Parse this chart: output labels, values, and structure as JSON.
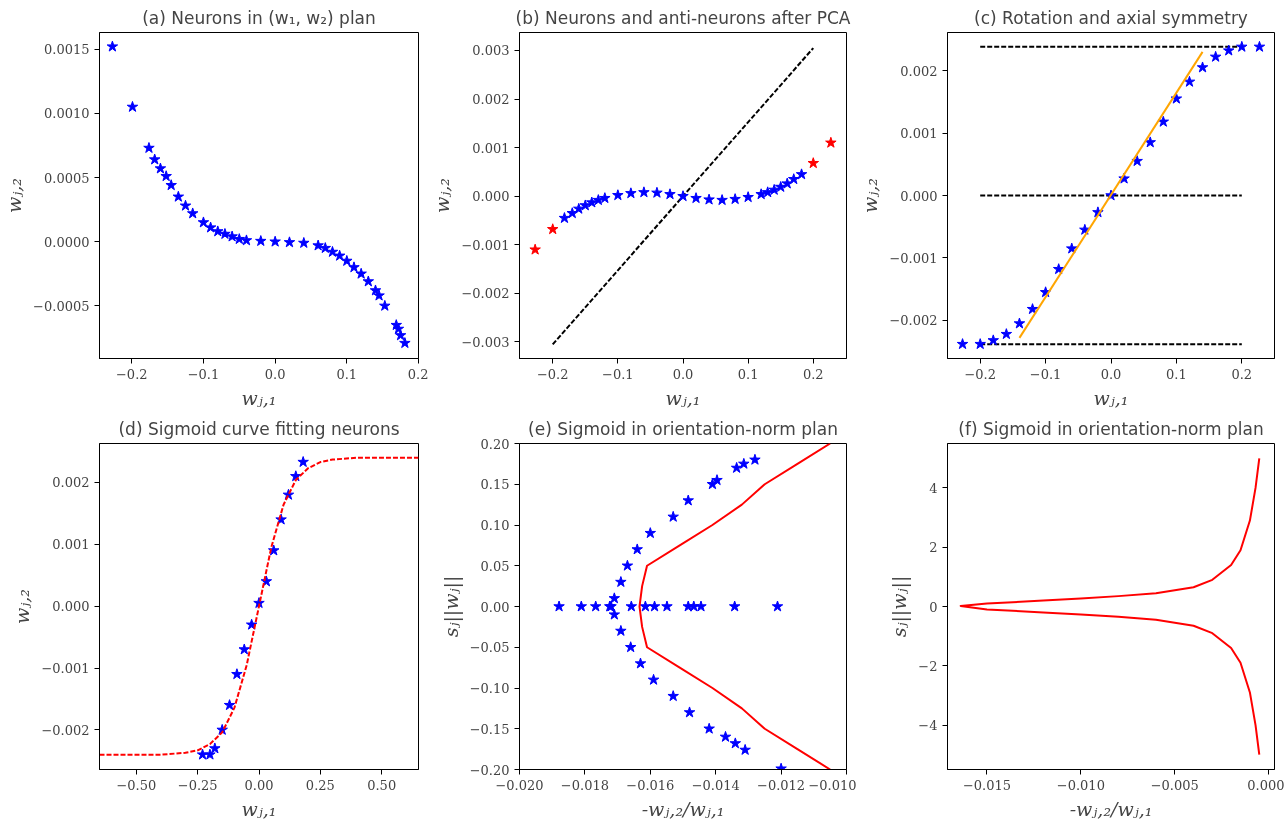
{
  "chart_data": [
    {
      "type": "scatter",
      "title": "(a) Neurons in (w₁, w₂) plan",
      "xlabel": "wⱼ,₁",
      "ylabel": "wⱼ,₂",
      "marker": "star",
      "grid": false,
      "xlim": [
        -0.245,
        0.2
      ],
      "ylim": [
        -0.00091,
        0.00163
      ],
      "xticks": [
        {
          "value": -0.2,
          "label": "−0.2"
        },
        {
          "value": -0.1,
          "label": "−0.1"
        },
        {
          "value": 0,
          "label": "0.0"
        },
        {
          "value": 0.1,
          "label": "0.1"
        },
        {
          "value": 0.2,
          "label": "0.2"
        }
      ],
      "yticks": [
        {
          "value": -0.0005,
          "label": "−0.0005"
        },
        {
          "value": 0,
          "label": "0.0000"
        },
        {
          "value": 0.0005,
          "label": "0.0005"
        },
        {
          "value": 0.001,
          "label": "0.0010"
        },
        {
          "value": 0.0015,
          "label": "0.0015"
        }
      ],
      "series": [
        {
          "color": "#0000ff",
          "x": [
            -0.227,
            -0.199,
            -0.176,
            -0.168,
            -0.16,
            -0.152,
            -0.145,
            -0.135,
            -0.125,
            -0.115,
            -0.1,
            -0.09,
            -0.08,
            -0.07,
            -0.06,
            -0.05,
            -0.04,
            -0.02,
            0,
            0.02,
            0.04,
            0.06,
            0.07,
            0.08,
            0.09,
            0.1,
            0.11,
            0.12,
            0.13,
            0.14,
            0.145,
            0.153,
            0.169,
            0.172,
            0.175,
            0.181
          ],
          "values": [
            0.00152,
            0.00105,
            0.00073,
            0.00064,
            0.00057,
            0.00051,
            0.00044,
            0.00035,
            0.00028,
            0.00022,
            0.00015,
            0.00011,
            8e-05,
            6e-05,
            4e-05,
            2e-05,
            1e-05,
            5e-06,
            0,
            -5e-06,
            -1e-05,
            -3e-05,
            -5e-05,
            -8e-05,
            -0.00011,
            -0.00015,
            -0.0002,
            -0.00025,
            -0.00031,
            -0.00038,
            -0.00042,
            -0.0005,
            -0.00065,
            -0.00068,
            -0.00073,
            -0.00079
          ]
        }
      ]
    },
    {
      "type": "scatter",
      "title": "(b) Neurons and anti-neurons after PCA",
      "xlabel": "wⱼ,₁",
      "ylabel": "wⱼ,₂",
      "marker": "star",
      "grid": false,
      "xlim": [
        -0.251,
        0.251
      ],
      "ylim": [
        -0.00334,
        0.00337
      ],
      "xticks": [
        {
          "value": -0.2,
          "label": "−0.2"
        },
        {
          "value": -0.1,
          "label": "−0.1"
        },
        {
          "value": 0,
          "label": "0.0"
        },
        {
          "value": 0.1,
          "label": "0.1"
        },
        {
          "value": 0.2,
          "label": "0.2"
        }
      ],
      "yticks": [
        {
          "value": -0.003,
          "label": "−0.003"
        },
        {
          "value": -0.002,
          "label": "−0.002"
        },
        {
          "value": -0.001,
          "label": "−0.001"
        },
        {
          "value": 0,
          "label": "0.000"
        },
        {
          "value": 0.001,
          "label": "0.001"
        },
        {
          "value": 0.002,
          "label": "0.002"
        },
        {
          "value": 0.003,
          "label": "0.003"
        }
      ],
      "series": [
        {
          "type": "line",
          "marker": "none",
          "color": "#000000",
          "line_style": "dashed",
          "x": [
            -0.2,
            0.2
          ],
          "values": [
            -0.00305,
            0.00305
          ]
        },
        {
          "color": "#0000ff",
          "x": [
            -0.182,
            -0.17,
            -0.16,
            -0.15,
            -0.14,
            -0.13,
            -0.12,
            -0.1,
            -0.08,
            -0.06,
            -0.04,
            -0.02,
            0,
            0.02,
            0.04,
            0.06,
            0.08,
            0.1,
            0.12,
            0.13,
            0.14,
            0.15,
            0.16,
            0.17,
            0.182
          ],
          "values": [
            -0.00045,
            -0.00035,
            -0.00026,
            -0.00019,
            -0.00013,
            -8e-05,
            -4e-05,
            2e-05,
            6e-05,
            8e-05,
            7e-05,
            4e-05,
            0,
            -4e-05,
            -7e-05,
            -8e-05,
            -6e-05,
            -2e-05,
            4e-05,
            8e-05,
            0.00013,
            0.00019,
            0.00026,
            0.00035,
            0.00045
          ]
        },
        {
          "color": "#ff0000",
          "x": [
            -0.227,
            -0.2,
            0.2,
            0.227
          ],
          "values": [
            -0.0011,
            -0.00068,
            0.00068,
            0.0011
          ]
        }
      ]
    },
    {
      "type": "scatter",
      "title": "(c) Rotation and axial symmetry",
      "xlabel": "wⱼ,₁",
      "ylabel": "wⱼ,₂",
      "marker": "star",
      "grid": false,
      "xlim": [
        -0.25,
        0.25
      ],
      "ylim": [
        -0.00261,
        0.00261
      ],
      "xticks": [
        {
          "value": -0.2,
          "label": "−0.2"
        },
        {
          "value": -0.1,
          "label": "−0.1"
        },
        {
          "value": 0,
          "label": "0.0"
        },
        {
          "value": 0.1,
          "label": "0.1"
        },
        {
          "value": 0.2,
          "label": "0.2"
        }
      ],
      "yticks": [
        {
          "value": -0.002,
          "label": "−0.002"
        },
        {
          "value": -0.001,
          "label": "−0.001"
        },
        {
          "value": 0,
          "label": "0.000"
        },
        {
          "value": 0.001,
          "label": "0.001"
        },
        {
          "value": 0.002,
          "label": "0.002"
        }
      ],
      "series": [
        {
          "type": "line",
          "marker": "none",
          "color": "#000000",
          "line_style": "dashed",
          "x": [
            -0.2,
            0.2
          ],
          "values": [
            0.00238,
            0.00238
          ]
        },
        {
          "type": "line",
          "marker": "none",
          "color": "#000000",
          "line_style": "dashed",
          "x": [
            -0.2,
            0.2
          ],
          "values": [
            0,
            0
          ]
        },
        {
          "type": "line",
          "marker": "none",
          "color": "#000000",
          "line_style": "dashed",
          "x": [
            -0.2,
            0.2
          ],
          "values": [
            -0.00238,
            -0.00238
          ]
        },
        {
          "color": "#0000ff",
          "x": [
            -0.227,
            -0.2,
            -0.18,
            -0.16,
            -0.14,
            -0.12,
            -0.1,
            -0.08,
            -0.06,
            -0.04,
            -0.02,
            0,
            0.02,
            0.04,
            0.06,
            0.08,
            0.1,
            0.12,
            0.14,
            0.16,
            0.18,
            0.2,
            0.227
          ],
          "values": [
            -0.00238,
            -0.00238,
            -0.00232,
            -0.00222,
            -0.00205,
            -0.00182,
            -0.00155,
            -0.00118,
            -0.00085,
            -0.00055,
            -0.00027,
            0,
            0.00027,
            0.00055,
            0.00085,
            0.00118,
            0.00155,
            0.00182,
            0.00205,
            0.00222,
            0.00232,
            0.00238,
            0.00238
          ]
        },
        {
          "type": "line",
          "marker": "none",
          "color": "#ffa500",
          "x": [
            -0.14,
            0.14
          ],
          "values": [
            -0.00228,
            0.0023
          ]
        }
      ]
    },
    {
      "type": "scatter",
      "title": "(d) Sigmoid curve fitting neurons",
      "xlabel": "wⱼ,₁",
      "ylabel": "wⱼ,₂",
      "marker": "star",
      "grid": false,
      "xlim": [
        -0.65,
        0.65
      ],
      "ylim": [
        -0.00264,
        0.00263
      ],
      "xticks": [
        {
          "value": -0.5,
          "label": "−0.50"
        },
        {
          "value": -0.25,
          "label": "−0.25"
        },
        {
          "value": 0,
          "label": "0.00"
        },
        {
          "value": 0.25,
          "label": "0.25"
        },
        {
          "value": 0.5,
          "label": "0.50"
        }
      ],
      "yticks": [
        {
          "value": -0.002,
          "label": "−0.002"
        },
        {
          "value": -0.001,
          "label": "−0.001"
        },
        {
          "value": 0,
          "label": "0.000"
        },
        {
          "value": 0.001,
          "label": "0.001"
        },
        {
          "value": 0.002,
          "label": "0.002"
        }
      ],
      "series": [
        {
          "color": "#0000ff",
          "x": [
            -0.23,
            -0.2,
            -0.18,
            -0.15,
            -0.12,
            -0.09,
            -0.06,
            -0.03,
            0,
            0.03,
            0.06,
            0.09,
            0.12,
            0.15,
            0.18
          ],
          "values": [
            -0.0024,
            -0.0024,
            -0.0023,
            -0.002,
            -0.0016,
            -0.0011,
            -0.0007,
            -0.0003,
            5e-05,
            0.0004,
            0.0009,
            0.0014,
            0.0018,
            0.0021,
            0.00233
          ]
        },
        {
          "type": "line",
          "marker": "none",
          "color": "#ff0000",
          "line_style": "dashed",
          "x": [
            -0.65,
            -0.5,
            -0.4,
            -0.3,
            -0.25,
            -0.2,
            -0.15,
            -0.1,
            -0.05,
            0,
            0.05,
            0.1,
            0.15,
            0.2,
            0.25,
            0.3,
            0.4,
            0.5,
            0.65
          ],
          "values": [
            -0.0024,
            -0.0024,
            -0.0024,
            -0.00237,
            -0.00233,
            -0.00223,
            -0.00204,
            -0.00164,
            -0.00095,
            0,
            0.00095,
            0.00164,
            0.00204,
            0.00223,
            0.00233,
            0.00237,
            0.0024,
            0.0024,
            0.0024
          ]
        }
      ]
    },
    {
      "type": "scatter",
      "title": "(e) Sigmoid in orientation-norm plan",
      "xlabel": "-wⱼ,₂/wⱼ,₁",
      "ylabel": "sⱼ||wⱼ||",
      "marker": "star",
      "grid": false,
      "xlim": [
        -0.02,
        -0.01
      ],
      "ylim": [
        -0.2,
        0.2
      ],
      "xticks": [
        {
          "value": -0.02,
          "label": "−0.020"
        },
        {
          "value": -0.018,
          "label": "−0.018"
        },
        {
          "value": -0.016,
          "label": "−0.016"
        },
        {
          "value": -0.014,
          "label": "−0.014"
        },
        {
          "value": -0.012,
          "label": "−0.012"
        },
        {
          "value": -0.01,
          "label": "−0.010"
        }
      ],
      "yticks": [
        {
          "value": -0.2,
          "label": "−0.20"
        },
        {
          "value": -0.15,
          "label": "−0.15"
        },
        {
          "value": -0.1,
          "label": "−0.10"
        },
        {
          "value": -0.05,
          "label": "−0.05"
        },
        {
          "value": 0,
          "label": "0.00"
        },
        {
          "value": 0.05,
          "label": "0.05"
        },
        {
          "value": 0.1,
          "label": "0.10"
        },
        {
          "value": 0.15,
          "label": "0.15"
        },
        {
          "value": 0.2,
          "label": "0.20"
        }
      ],
      "series": [
        {
          "color": "#0000ff",
          "x": [
            -0.01879,
            -0.01811,
            -0.01767,
            -0.01724,
            -0.01658,
            -0.01615,
            -0.01587,
            -0.01549,
            -0.01484,
            -0.01467,
            -0.01445,
            -0.01342,
            -0.01211,
            -0.0128,
            -0.01314,
            -0.01336,
            -0.01396,
            -0.0141,
            -0.01484,
            -0.0153,
            -0.016,
            -0.0164,
            -0.0167,
            -0.0169,
            -0.0171,
            -0.0172,
            -0.0171,
            -0.0169,
            -0.0166,
            -0.0163,
            -0.0159,
            -0.0153,
            -0.0148,
            -0.0142,
            -0.0137,
            -0.0134,
            -0.0131,
            -0.012
          ],
          "values": [
            0,
            0,
            0,
            0,
            0,
            0,
            0,
            0,
            0,
            0,
            0,
            0,
            0,
            0.18,
            0.175,
            0.17,
            0.155,
            0.15,
            0.13,
            0.11,
            0.09,
            0.07,
            0.05,
            0.03,
            0.01,
            0,
            -0.01,
            -0.03,
            -0.05,
            -0.07,
            -0.09,
            -0.11,
            -0.13,
            -0.15,
            -0.16,
            -0.168,
            -0.176,
            -0.199
          ]
        },
        {
          "type": "line",
          "marker": "none",
          "color": "#ff0000",
          "x": [
            -0.0105,
            -0.0115,
            -0.0125,
            -0.0132,
            -0.0141,
            -0.0151,
            -0.0161,
            -0.01625,
            -0.01633,
            -0.01625,
            -0.0161,
            -0.0151,
            -0.0141,
            -0.0132,
            -0.0125,
            -0.0115,
            -0.0105
          ],
          "values": [
            -0.2,
            -0.175,
            -0.15,
            -0.125,
            -0.1,
            -0.075,
            -0.05,
            -0.025,
            0,
            0.025,
            0.05,
            0.075,
            0.1,
            0.125,
            0.15,
            0.175,
            0.2
          ]
        }
      ]
    },
    {
      "type": "line",
      "title": "(f) Sigmoid in orientation-norm plan",
      "xlabel": "-wⱼ,₂/wⱼ,₁",
      "ylabel": "sⱼ||wⱼ||",
      "grid": false,
      "xlim": [
        -0.0171,
        0.00031
      ],
      "ylim": [
        -5.5,
        5.5
      ],
      "xticks": [
        {
          "value": -0.015,
          "label": "−0.015"
        },
        {
          "value": -0.01,
          "label": "−0.010"
        },
        {
          "value": -0.005,
          "label": "−0.005"
        },
        {
          "value": 0,
          "label": "0.000"
        }
      ],
      "yticks": [
        {
          "value": -4,
          "label": "−4"
        },
        {
          "value": -2,
          "label": "−2"
        },
        0,
        2,
        4
      ],
      "series": [
        {
          "color": "#ff0000",
          "x": [
            -0.0005,
            -0.0007,
            -0.001,
            -0.0015,
            -0.002,
            -0.003,
            -0.004,
            -0.006,
            -0.008,
            -0.01,
            -0.012,
            -0.015,
            -0.0164,
            -0.015,
            -0.012,
            -0.01,
            -0.008,
            -0.006,
            -0.004,
            -0.003,
            -0.002,
            -0.0015,
            -0.001,
            -0.0007,
            -0.0005
          ],
          "values": [
            5.0,
            4.0,
            2.9,
            1.9,
            1.4,
            0.9,
            0.65,
            0.45,
            0.35,
            0.27,
            0.2,
            0.1,
            0.02,
            -0.1,
            -0.2,
            -0.27,
            -0.35,
            -0.45,
            -0.65,
            -0.9,
            -1.4,
            -1.9,
            -2.9,
            -4.0,
            -5.0
          ]
        }
      ]
    }
  ]
}
